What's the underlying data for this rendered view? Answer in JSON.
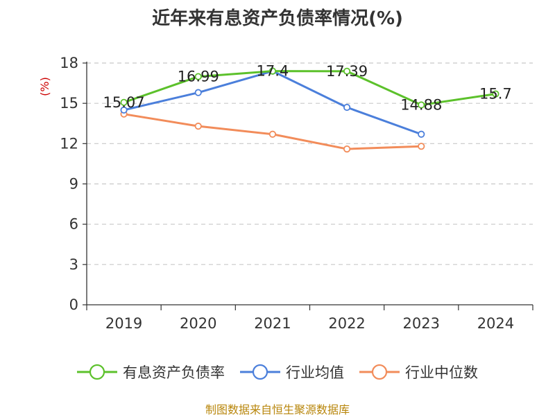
{
  "chart_data": {
    "type": "line",
    "title": "近年来有息资产负债率情况(%)",
    "ylabel": "(%)",
    "xlabel": "",
    "categories": [
      "2019",
      "2020",
      "2021",
      "2022",
      "2023",
      "2024"
    ],
    "ylim": [
      0,
      18
    ],
    "yticks": [
      0,
      3,
      6,
      9,
      12,
      15,
      18
    ],
    "grid": true,
    "legend_position": "bottom",
    "series": [
      {
        "name": "有息资产负债率",
        "color": "#5cc12b",
        "values": [
          15.07,
          16.99,
          17.4,
          17.39,
          14.88,
          15.7
        ],
        "labels": [
          "15.07",
          "16.99",
          "17.4",
          "17.39",
          "14.88",
          "15.7"
        ]
      },
      {
        "name": "行业均值",
        "color": "#4b7fdb",
        "values": [
          14.5,
          15.8,
          17.4,
          14.7,
          12.7,
          null
        ]
      },
      {
        "name": "行业中位数",
        "color": "#f28c5a",
        "values": [
          14.2,
          13.3,
          12.7,
          11.6,
          11.8,
          null
        ]
      }
    ]
  },
  "source": "制图数据来自恒生聚源数据库",
  "ylabel_color": "#cc0000"
}
